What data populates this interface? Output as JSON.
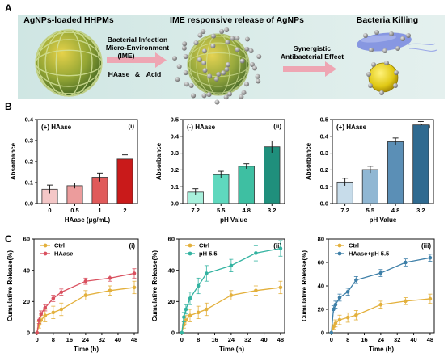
{
  "panel_a": {
    "letter": "A",
    "labels": {
      "hhpm": "AgNPs-loaded HHPMs",
      "release": "IME responsive release of AgNPs",
      "kill": "Bacteria Killing",
      "ime1": "Bacterial Infection",
      "ime2": "Micro-Environment",
      "ime3": "(IME)",
      "haase": "HAase",
      "amp": "&",
      "acid": "Acid",
      "syn1": "Synergistic",
      "syn2": "Antibacterial Effect"
    },
    "colors": {
      "banner": "#d9ebea",
      "arrow": "#eea6b3",
      "sphere_green": "#6f8f2e",
      "sphere_yellow": "#d9c21a",
      "bacteria": "#6e7fd4",
      "agnp": "#8a8a8a"
    },
    "icons": [
      "hhpm-sphere-icon",
      "broken-sphere-icon",
      "bacteria-icon",
      "yellow-bacterium-icon"
    ]
  },
  "panel_b": {
    "letter": "B"
  },
  "panel_c": {
    "letter": "C"
  },
  "chart_data": [
    {
      "id": "b1",
      "type": "bar",
      "tag": "(+) HAase",
      "roman": "(i)",
      "categories": [
        "0",
        "0.5",
        "1",
        "2"
      ],
      "values": [
        0.068,
        0.085,
        0.125,
        0.212
      ],
      "errors": [
        0.02,
        0.013,
        0.02,
        0.02
      ],
      "colors": [
        "#f4c7c7",
        "#ec9c9c",
        "#e05a5a",
        "#c91a1a"
      ],
      "xlabel": "HAase (μg/mL)",
      "ylabel": "Absorbance",
      "ylim": [
        0,
        0.4
      ],
      "yticks": [
        0.0,
        0.1,
        0.2,
        0.3,
        0.4
      ]
    },
    {
      "id": "b2",
      "type": "bar",
      "tag": "(-) HAase",
      "roman": "(ii)",
      "categories": [
        "7.2",
        "5.5",
        "4.8",
        "3.2"
      ],
      "values": [
        0.068,
        0.172,
        0.222,
        0.338
      ],
      "errors": [
        0.02,
        0.02,
        0.015,
        0.035
      ],
      "colors": [
        "#a8f0dc",
        "#5fd8be",
        "#3ebfa2",
        "#1f8f7c"
      ],
      "xlabel": "pH Value",
      "ylabel": "Absorbance",
      "ylim": [
        0,
        0.5
      ],
      "yticks": [
        0.0,
        0.1,
        0.2,
        0.3,
        0.4,
        0.5
      ]
    },
    {
      "id": "b3",
      "type": "bar",
      "tag": "(+) HAase",
      "roman": "(iii)",
      "categories": [
        "7.2",
        "5.5",
        "4.8",
        "3.2"
      ],
      "values": [
        0.128,
        0.202,
        0.368,
        0.468
      ],
      "errors": [
        0.022,
        0.02,
        0.022,
        0.02
      ],
      "colors": [
        "#c7dcea",
        "#90b7d3",
        "#5b8fb6",
        "#2f6a90"
      ],
      "xlabel": "pH Value",
      "ylabel": "Absorbance",
      "ylim": [
        0,
        0.5
      ],
      "yticks": [
        0.0,
        0.1,
        0.2,
        0.3,
        0.4,
        0.5
      ]
    },
    {
      "id": "c1",
      "type": "line",
      "roman": "(i)",
      "x": [
        0,
        1,
        2,
        4,
        8,
        12,
        24,
        36,
        48
      ],
      "xticks": [
        0,
        8,
        16,
        24,
        32,
        40,
        48
      ],
      "xlabel": "Time (h)",
      "ylabel": "Cumulative Release(%)",
      "ylim": [
        0,
        60
      ],
      "yticks": [
        0,
        20,
        40,
        60
      ],
      "xlim": [
        0,
        50
      ],
      "series": [
        {
          "name": "Ctrl",
          "color": "#e3b03c",
          "values": [
            0,
            5,
            8,
            11,
            13,
            15,
            24,
            27,
            29
          ],
          "errors": [
            0,
            2,
            3,
            4,
            4,
            4,
            3,
            3,
            4
          ]
        },
        {
          "name": "HAase",
          "color": "#d9505f",
          "values": [
            0,
            8,
            12,
            16,
            22,
            26,
            33,
            35,
            38
          ],
          "errors": [
            0,
            2,
            2,
            2,
            2,
            2,
            2,
            2,
            3
          ]
        }
      ]
    },
    {
      "id": "c2",
      "type": "line",
      "roman": "(ii)",
      "x": [
        0,
        1,
        2,
        4,
        8,
        12,
        24,
        36,
        48
      ],
      "xticks": [
        0,
        8,
        16,
        24,
        32,
        40,
        48
      ],
      "xlabel": "Time (h)",
      "ylabel": "Cumulative Release(%)",
      "ylim": [
        0,
        60
      ],
      "yticks": [
        0,
        20,
        40,
        60
      ],
      "xlim": [
        0,
        50
      ],
      "series": [
        {
          "name": "Ctrl",
          "color": "#e3b03c",
          "values": [
            0,
            5,
            8,
            11,
            13,
            15,
            24,
            27,
            29
          ],
          "errors": [
            0,
            2,
            3,
            4,
            4,
            4,
            3,
            3,
            4
          ]
        },
        {
          "name": "pH 5.5",
          "color": "#33b3a1",
          "values": [
            0,
            10,
            15,
            22,
            30,
            38,
            43,
            51,
            54
          ],
          "errors": [
            0,
            3,
            3,
            4,
            5,
            5,
            4,
            5,
            5
          ]
        }
      ]
    },
    {
      "id": "c3",
      "type": "line",
      "roman": "(iii)",
      "x": [
        0,
        1,
        2,
        4,
        8,
        12,
        24,
        36,
        48
      ],
      "xticks": [
        0,
        8,
        16,
        24,
        32,
        40,
        48
      ],
      "xlabel": "Time (h)",
      "ylabel": "Cumulative Release(%)",
      "ylim": [
        0,
        80
      ],
      "yticks": [
        0,
        20,
        40,
        60,
        80
      ],
      "xlim": [
        0,
        50
      ],
      "series": [
        {
          "name": "Ctrl",
          "color": "#e3b03c",
          "values": [
            0,
            5,
            8,
            11,
            13,
            15,
            24,
            27,
            29
          ],
          "errors": [
            0,
            2,
            3,
            4,
            4,
            4,
            3,
            3,
            4
          ]
        },
        {
          "name": "HAase+pH 5.5",
          "color": "#3d7fa8",
          "values": [
            0,
            20,
            24,
            30,
            35,
            45,
            51,
            60,
            64
          ],
          "errors": [
            0,
            3,
            3,
            3,
            3,
            3,
            3,
            3,
            3
          ]
        }
      ]
    }
  ]
}
